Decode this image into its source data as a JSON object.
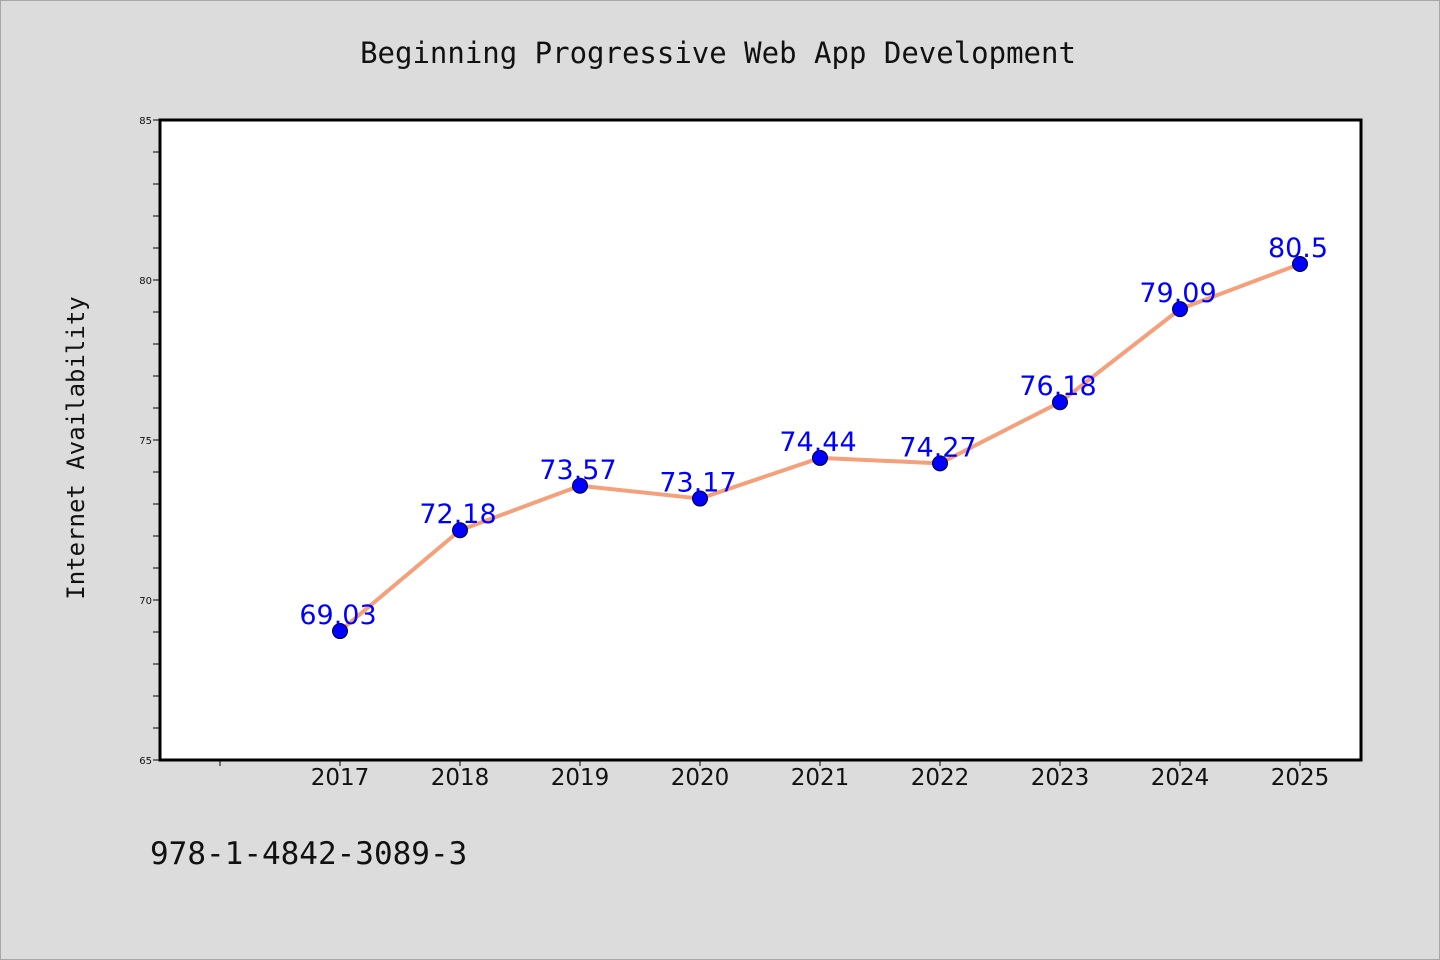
{
  "chart_data": {
    "type": "line",
    "title": "Beginning Progressive Web App Development",
    "xlabel": "",
    "ylabel": "Internet Availability",
    "categories": [
      "2017",
      "2018",
      "2019",
      "2020",
      "2021",
      "2022",
      "2023",
      "2024",
      "2025"
    ],
    "series": [
      {
        "values": [
          69.03,
          72.18,
          73.57,
          73.17,
          74.44,
          74.27,
          76.18,
          79.09,
          80.5
        ],
        "labels": [
          "69.03",
          "72.18",
          "73.57",
          "73.17",
          "74.44",
          "74.27",
          "76.18",
          "79.09",
          "80.5"
        ]
      }
    ],
    "ylim": [
      65,
      85
    ],
    "yticks": [
      "65",
      "70",
      "75",
      "80",
      "85"
    ],
    "grid": false,
    "colors": {
      "line": "#f4a07a",
      "marker": "#0000ff",
      "label": "#0000ff",
      "plot_bg": "#ffffff",
      "page_bg": "#dcdcdc"
    }
  },
  "footer_text": "978-1-4842-3089-3"
}
